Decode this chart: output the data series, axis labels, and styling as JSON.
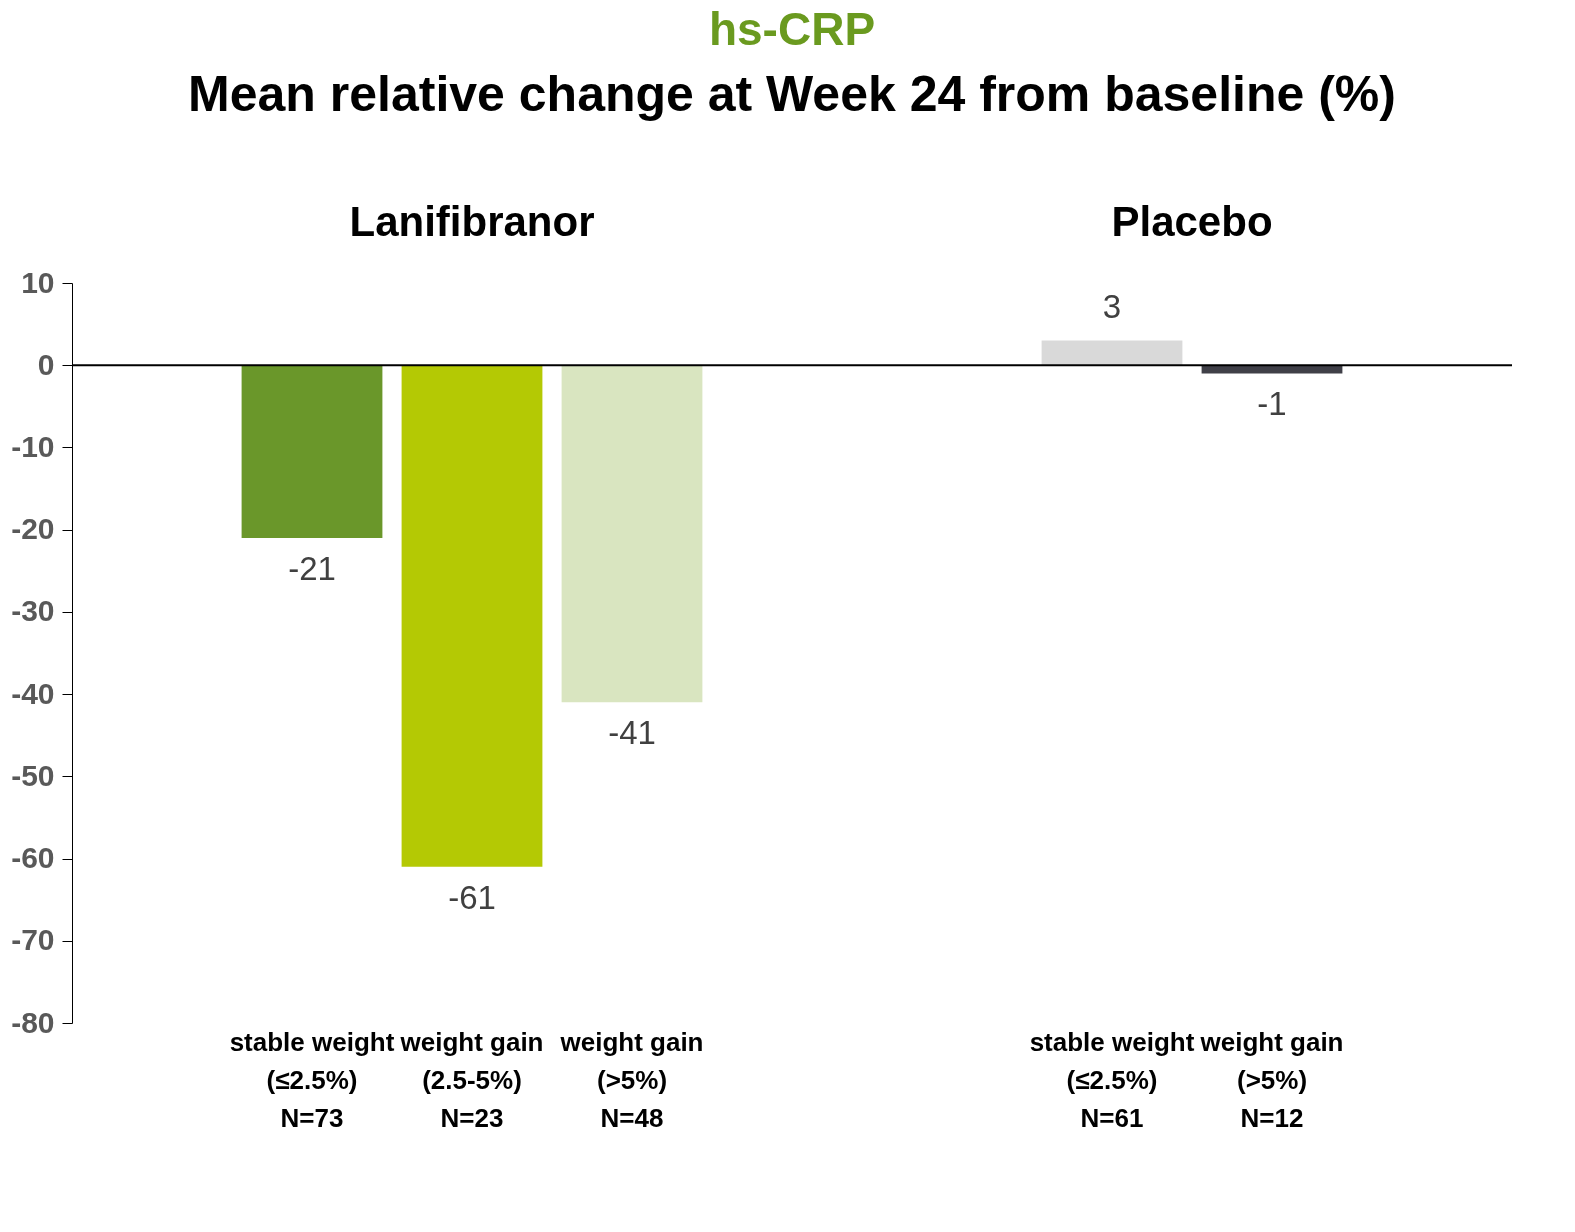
{
  "chart_data": {
    "type": "bar",
    "title": "hs-CRP",
    "subtitle": "Mean relative change at Week 24 from baseline (%)",
    "categories": [
      null,
      "stable weight\n(≤2.5%)\nN=73",
      "weight gain\n(2.5-5%)\nN=23",
      "weight gain\n(>5%)\nN=48",
      null,
      null,
      "stable weight\n(≤2.5%)\nN=61",
      "weight gain\n(>5%)\nN=12",
      null
    ],
    "values": [
      null,
      -21,
      -61,
      -41,
      null,
      null,
      3,
      -1,
      null
    ],
    "colors": [
      "#6a972a",
      "#6a972a",
      "#b4c904",
      "#d9e5c0",
      "#d9d9d9",
      "#d9d9d9",
      "#d9d9d9",
      "#404048",
      "#404048"
    ],
    "annotations": [
      "Lanifibranor",
      "Placebo"
    ],
    "ref_lines": [
      {
        "axis": "y",
        "value": 0,
        "color": "#000000"
      }
    ],
    "ylim": [
      -80,
      10
    ],
    "yticks": [
      -80,
      -70,
      -60,
      -50,
      -40,
      -30,
      -20,
      -10,
      0,
      10
    ],
    "data_labels": true,
    "grid": false,
    "legend": false
  }
}
